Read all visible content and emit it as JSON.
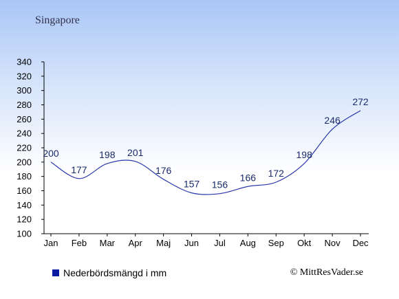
{
  "location": "Singapore",
  "legend": {
    "label": "Nederbördsmängd i mm",
    "color": "#0a1aa0"
  },
  "credit": "© MittResVader.se",
  "colors": {
    "line": "#2a37a8",
    "axis": "#000000"
  },
  "chart_data": {
    "type": "line",
    "title": "Singapore",
    "categories": [
      "Jan",
      "Feb",
      "Mar",
      "Apr",
      "Maj",
      "Jun",
      "Jul",
      "Aug",
      "Sep",
      "Okt",
      "Nov",
      "Dec"
    ],
    "series": [
      {
        "name": "Nederbördsmängd i mm",
        "values": [
          200,
          177,
          198,
          201,
          176,
          157,
          156,
          166,
          172,
          198,
          246,
          272
        ]
      }
    ],
    "ylim": [
      100,
      340
    ],
    "yticks": [
      100,
      120,
      140,
      160,
      180,
      200,
      220,
      240,
      260,
      280,
      300,
      320,
      340
    ],
    "grid": false,
    "legend_position": "bottom-left"
  }
}
